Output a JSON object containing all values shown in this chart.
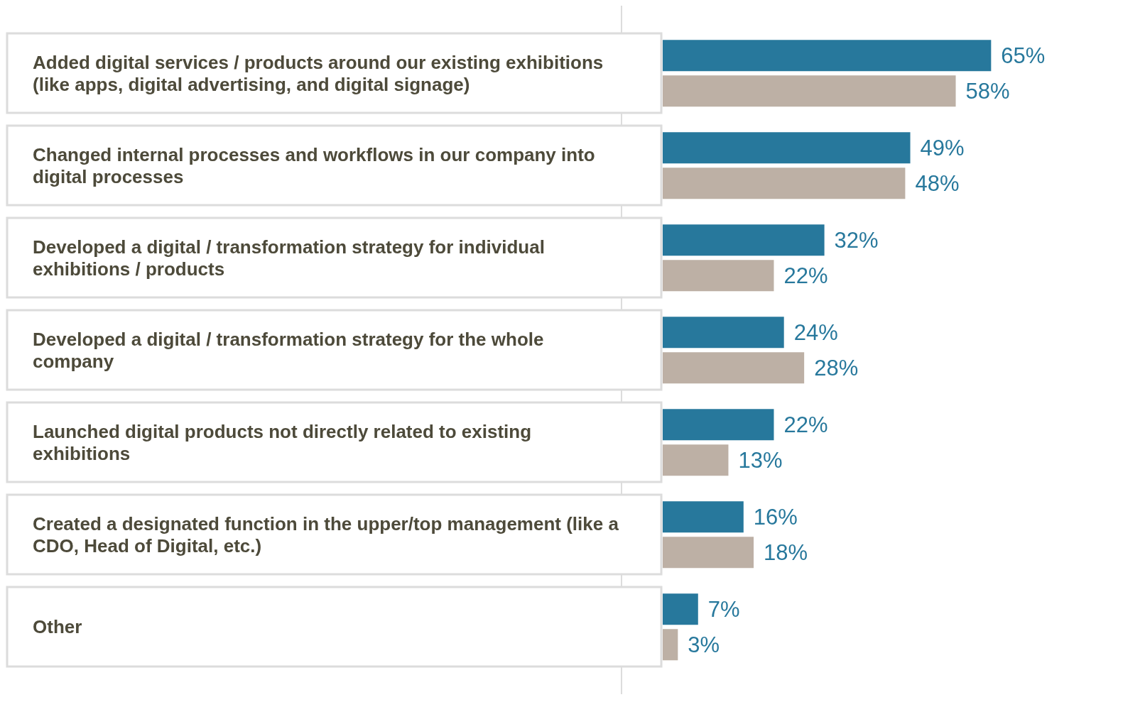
{
  "chart_data": {
    "type": "bar",
    "orientation": "horizontal",
    "categories": [
      "Added digital services / products around our existing exhibitions (like apps, digital advertising, and digital signage)",
      "Changed internal processes and workflows in our company into digital processes",
      "Developed a digital / transformation strategy for individual exhibitions / products",
      "Developed a digital / transformation strategy for the whole company",
      "Launched digital products not directly related to existing exhibitions",
      "Created a designated function in the upper/top management (like a CDO, Head of Digital, etc.)",
      "Other"
    ],
    "series": [
      {
        "color": "#27789c",
        "values": [
          65,
          49,
          32,
          24,
          22,
          16,
          7
        ],
        "value_labels": [
          "65%",
          "49%",
          "32%",
          "24%",
          "22%",
          "16%",
          "7%"
        ]
      },
      {
        "color": "#bdb0a5",
        "values": [
          58,
          48,
          22,
          28,
          13,
          18,
          3
        ],
        "value_labels": [
          "58%",
          "48%",
          "22%",
          "28%",
          "13%",
          "18%",
          "3%"
        ]
      }
    ],
    "legend": false
  }
}
